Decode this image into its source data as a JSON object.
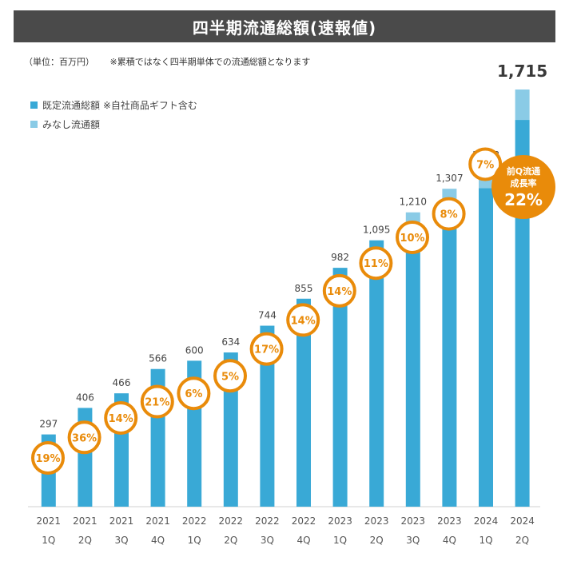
{
  "header": {
    "title": "四半期流通総額(速報値)",
    "unit_label": "（単位：百万円）",
    "note": "※累積ではなく四半期単体での流通総額となります"
  },
  "legend": {
    "items": [
      {
        "label": "既定流通総額 ※自社商品ギフト含む",
        "color": "#39A9D6"
      },
      {
        "label": "みなし流通額",
        "color": "#8ACBE6"
      }
    ]
  },
  "callout": {
    "line1": "前Q流通",
    "line2": "成長率",
    "value": "22%"
  },
  "colors": {
    "bar_primary": "#39A9D6",
    "bar_secondary": "#8ACBE6",
    "accent_orange": "#E98B0A",
    "title_bg": "#4A4A4A"
  },
  "chart_data": {
    "type": "bar",
    "stacked": true,
    "title": "四半期流通総額(速報値)",
    "ylim": [
      0,
      1715
    ],
    "categories": [
      {
        "year": "2021",
        "quarter": "1Q"
      },
      {
        "year": "2021",
        "quarter": "2Q"
      },
      {
        "year": "2021",
        "quarter": "3Q"
      },
      {
        "year": "2021",
        "quarter": "4Q"
      },
      {
        "year": "2022",
        "quarter": "1Q"
      },
      {
        "year": "2022",
        "quarter": "2Q"
      },
      {
        "year": "2022",
        "quarter": "3Q"
      },
      {
        "year": "2022",
        "quarter": "4Q"
      },
      {
        "year": "2023",
        "quarter": "1Q"
      },
      {
        "year": "2023",
        "quarter": "2Q"
      },
      {
        "year": "2023",
        "quarter": "3Q"
      },
      {
        "year": "2023",
        "quarter": "4Q"
      },
      {
        "year": "2024",
        "quarter": "1Q"
      },
      {
        "year": "2024",
        "quarter": "2Q"
      }
    ],
    "series": [
      {
        "name": "既定流通総額",
        "values": [
          297,
          406,
          466,
          566,
          600,
          634,
          744,
          855,
          982,
          1095,
          1150,
          1240,
          1310,
          1590
        ]
      },
      {
        "name": "みなし流通額",
        "values": [
          0,
          0,
          0,
          0,
          0,
          0,
          0,
          0,
          0,
          0,
          60,
          67,
          93,
          125
        ]
      }
    ],
    "totals": [
      "297",
      "406",
      "466",
      "566",
      "600",
      "634",
      "744",
      "855",
      "982",
      "1,095",
      "1,210",
      "1,307",
      "1,403",
      "1,715"
    ],
    "growth_rates": [
      "19%",
      "36%",
      "14%",
      "21%",
      "6%",
      "5%",
      "17%",
      "14%",
      "14%",
      "11%",
      "10%",
      "8%",
      "7%",
      null
    ]
  }
}
